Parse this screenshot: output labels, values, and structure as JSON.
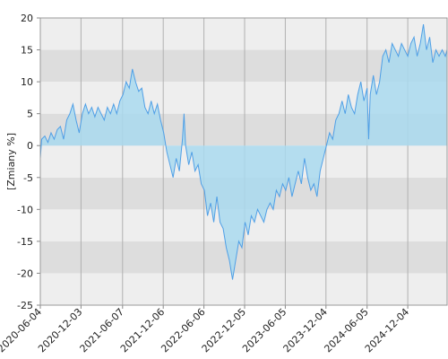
{
  "chart_data": {
    "type": "area",
    "y_label": "[Zmiany %]",
    "color": "#4f9fe6",
    "fill_color": "#a9d9ee",
    "band_colors": [
      "#eeeeee",
      "#dddddd"
    ],
    "grid": true,
    "xlim": [
      "2020-06-04",
      "2025-05-29"
    ],
    "xticks": [
      "2020-06-04",
      "2020-12-03",
      "2021-06-07",
      "2021-12-06",
      "2022-06-06",
      "2022-12-05",
      "2023-06-05",
      "2023-12-04",
      "2024-06-05",
      "2024-12-04"
    ],
    "ylim": [
      -25,
      20
    ],
    "yticks": [
      -25,
      -20,
      -15,
      -10,
      -5,
      0,
      5,
      10,
      15,
      20
    ],
    "x": [
      "2020-06-04",
      "2020-06-10",
      "2020-06-24",
      "2020-07-08",
      "2020-07-22",
      "2020-08-05",
      "2020-08-19",
      "2020-09-02",
      "2020-09-16",
      "2020-09-30",
      "2020-10-14",
      "2020-10-28",
      "2020-11-11",
      "2020-11-25",
      "2020-12-09",
      "2020-12-23",
      "2021-01-06",
      "2021-01-20",
      "2021-02-03",
      "2021-02-17",
      "2021-03-03",
      "2021-03-17",
      "2021-03-31",
      "2021-04-14",
      "2021-04-28",
      "2021-05-12",
      "2021-05-26",
      "2021-06-09",
      "2021-06-23",
      "2021-07-07",
      "2021-07-21",
      "2021-08-04",
      "2021-08-18",
      "2021-09-01",
      "2021-09-15",
      "2021-09-29",
      "2021-10-13",
      "2021-10-27",
      "2021-11-10",
      "2021-11-24",
      "2021-12-08",
      "2021-12-22",
      "2022-01-05",
      "2022-01-19",
      "2022-02-02",
      "2022-02-16",
      "2022-03-02",
      "2022-03-09",
      "2022-03-16",
      "2022-03-30",
      "2022-04-13",
      "2022-04-27",
      "2022-05-11",
      "2022-05-25",
      "2022-06-08",
      "2022-06-22",
      "2022-07-06",
      "2022-07-20",
      "2022-08-03",
      "2022-08-17",
      "2022-08-31",
      "2022-09-14",
      "2022-09-28",
      "2022-10-12",
      "2022-10-26",
      "2022-11-09",
      "2022-11-23",
      "2022-12-07",
      "2022-12-21",
      "2023-01-04",
      "2023-01-18",
      "2023-02-01",
      "2023-02-15",
      "2023-03-01",
      "2023-03-15",
      "2023-03-29",
      "2023-04-12",
      "2023-04-26",
      "2023-05-10",
      "2023-05-24",
      "2023-06-07",
      "2023-06-21",
      "2023-07-05",
      "2023-07-19",
      "2023-08-02",
      "2023-08-16",
      "2023-08-30",
      "2023-09-13",
      "2023-09-27",
      "2023-10-11",
      "2023-10-25",
      "2023-11-08",
      "2023-11-22",
      "2023-12-06",
      "2023-12-20",
      "2024-01-03",
      "2024-01-17",
      "2024-01-31",
      "2024-02-14",
      "2024-02-28",
      "2024-03-13",
      "2024-03-27",
      "2024-04-10",
      "2024-04-24",
      "2024-05-08",
      "2024-05-22",
      "2024-06-05",
      "2024-06-12",
      "2024-06-19",
      "2024-07-03",
      "2024-07-17",
      "2024-07-31",
      "2024-08-14",
      "2024-08-28",
      "2024-09-11",
      "2024-09-25",
      "2024-10-09",
      "2024-10-23",
      "2024-11-06",
      "2024-11-20",
      "2024-12-04",
      "2024-12-18",
      "2025-01-01",
      "2025-01-15",
      "2025-01-29",
      "2025-02-12",
      "2025-02-26",
      "2025-03-12",
      "2025-03-26",
      "2025-04-09",
      "2025-04-23",
      "2025-05-07",
      "2025-05-21",
      "2025-05-29"
    ],
    "values": [
      -2,
      1,
      1.5,
      0.5,
      2,
      1,
      2.5,
      3,
      1,
      4,
      5,
      6.5,
      4,
      2,
      5,
      6.5,
      5,
      6,
      4.5,
      6,
      5,
      4,
      6,
      5,
      6.5,
      5,
      7,
      8,
      10,
      9,
      12,
      10,
      8.5,
      9,
      6,
      5,
      7,
      5,
      6.5,
      4,
      2,
      -1,
      -3,
      -5,
      -2,
      -4,
      1,
      5,
      0,
      -3,
      -1,
      -4,
      -3,
      -6,
      -7,
      -11,
      -9,
      -12,
      -8,
      -12,
      -13,
      -16,
      -18,
      -21,
      -18,
      -15,
      -16,
      -12,
      -14,
      -11,
      -12,
      -10,
      -11,
      -12,
      -10,
      -9,
      -10,
      -7,
      -8,
      -6,
      -7,
      -5,
      -8,
      -6,
      -4,
      -6,
      -2,
      -5,
      -7,
      -6,
      -8,
      -4,
      -2,
      0,
      2,
      1,
      4,
      5,
      7,
      5,
      8,
      6,
      5,
      8,
      10,
      7,
      9,
      1,
      8,
      11,
      8,
      10,
      14,
      15,
      13,
      16,
      15,
      14,
      16,
      15,
      14,
      16,
      17,
      14,
      16,
      19,
      15,
      17,
      13,
      15,
      14,
      15,
      14,
      15
    ]
  }
}
